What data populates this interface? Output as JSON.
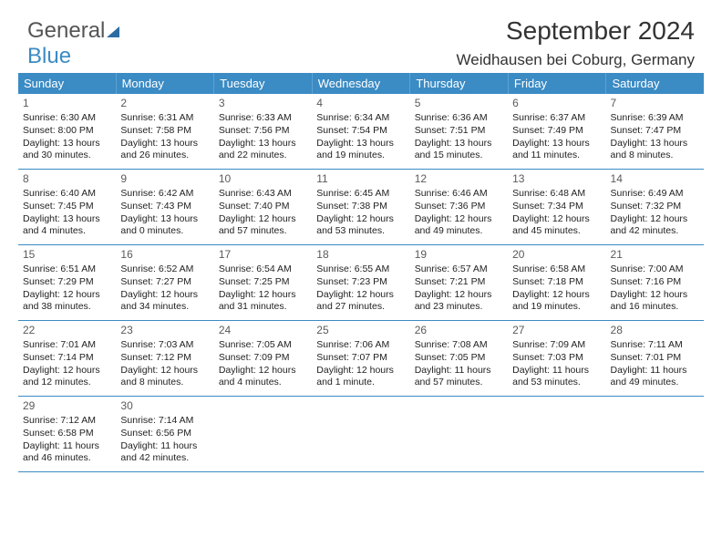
{
  "logo": {
    "text1": "General",
    "text2": "Blue"
  },
  "title": "September 2024",
  "location": "Weidhausen bei Coburg, Germany",
  "colors": {
    "header_bg": "#3b8bc4",
    "header_border": "#5fa3d4",
    "week_border": "#3b8bc4",
    "text": "#222222",
    "title_text": "#333333",
    "logo_gray": "#555555",
    "logo_blue": "#3b8bc4"
  },
  "weekdays": [
    "Sunday",
    "Monday",
    "Tuesday",
    "Wednesday",
    "Thursday",
    "Friday",
    "Saturday"
  ],
  "weeks": [
    [
      {
        "num": "1",
        "sunrise": "Sunrise: 6:30 AM",
        "sunset": "Sunset: 8:00 PM",
        "daylight": "Daylight: 13 hours and 30 minutes."
      },
      {
        "num": "2",
        "sunrise": "Sunrise: 6:31 AM",
        "sunset": "Sunset: 7:58 PM",
        "daylight": "Daylight: 13 hours and 26 minutes."
      },
      {
        "num": "3",
        "sunrise": "Sunrise: 6:33 AM",
        "sunset": "Sunset: 7:56 PM",
        "daylight": "Daylight: 13 hours and 22 minutes."
      },
      {
        "num": "4",
        "sunrise": "Sunrise: 6:34 AM",
        "sunset": "Sunset: 7:54 PM",
        "daylight": "Daylight: 13 hours and 19 minutes."
      },
      {
        "num": "5",
        "sunrise": "Sunrise: 6:36 AM",
        "sunset": "Sunset: 7:51 PM",
        "daylight": "Daylight: 13 hours and 15 minutes."
      },
      {
        "num": "6",
        "sunrise": "Sunrise: 6:37 AM",
        "sunset": "Sunset: 7:49 PM",
        "daylight": "Daylight: 13 hours and 11 minutes."
      },
      {
        "num": "7",
        "sunrise": "Sunrise: 6:39 AM",
        "sunset": "Sunset: 7:47 PM",
        "daylight": "Daylight: 13 hours and 8 minutes."
      }
    ],
    [
      {
        "num": "8",
        "sunrise": "Sunrise: 6:40 AM",
        "sunset": "Sunset: 7:45 PM",
        "daylight": "Daylight: 13 hours and 4 minutes."
      },
      {
        "num": "9",
        "sunrise": "Sunrise: 6:42 AM",
        "sunset": "Sunset: 7:43 PM",
        "daylight": "Daylight: 13 hours and 0 minutes."
      },
      {
        "num": "10",
        "sunrise": "Sunrise: 6:43 AM",
        "sunset": "Sunset: 7:40 PM",
        "daylight": "Daylight: 12 hours and 57 minutes."
      },
      {
        "num": "11",
        "sunrise": "Sunrise: 6:45 AM",
        "sunset": "Sunset: 7:38 PM",
        "daylight": "Daylight: 12 hours and 53 minutes."
      },
      {
        "num": "12",
        "sunrise": "Sunrise: 6:46 AM",
        "sunset": "Sunset: 7:36 PM",
        "daylight": "Daylight: 12 hours and 49 minutes."
      },
      {
        "num": "13",
        "sunrise": "Sunrise: 6:48 AM",
        "sunset": "Sunset: 7:34 PM",
        "daylight": "Daylight: 12 hours and 45 minutes."
      },
      {
        "num": "14",
        "sunrise": "Sunrise: 6:49 AM",
        "sunset": "Sunset: 7:32 PM",
        "daylight": "Daylight: 12 hours and 42 minutes."
      }
    ],
    [
      {
        "num": "15",
        "sunrise": "Sunrise: 6:51 AM",
        "sunset": "Sunset: 7:29 PM",
        "daylight": "Daylight: 12 hours and 38 minutes."
      },
      {
        "num": "16",
        "sunrise": "Sunrise: 6:52 AM",
        "sunset": "Sunset: 7:27 PM",
        "daylight": "Daylight: 12 hours and 34 minutes."
      },
      {
        "num": "17",
        "sunrise": "Sunrise: 6:54 AM",
        "sunset": "Sunset: 7:25 PM",
        "daylight": "Daylight: 12 hours and 31 minutes."
      },
      {
        "num": "18",
        "sunrise": "Sunrise: 6:55 AM",
        "sunset": "Sunset: 7:23 PM",
        "daylight": "Daylight: 12 hours and 27 minutes."
      },
      {
        "num": "19",
        "sunrise": "Sunrise: 6:57 AM",
        "sunset": "Sunset: 7:21 PM",
        "daylight": "Daylight: 12 hours and 23 minutes."
      },
      {
        "num": "20",
        "sunrise": "Sunrise: 6:58 AM",
        "sunset": "Sunset: 7:18 PM",
        "daylight": "Daylight: 12 hours and 19 minutes."
      },
      {
        "num": "21",
        "sunrise": "Sunrise: 7:00 AM",
        "sunset": "Sunset: 7:16 PM",
        "daylight": "Daylight: 12 hours and 16 minutes."
      }
    ],
    [
      {
        "num": "22",
        "sunrise": "Sunrise: 7:01 AM",
        "sunset": "Sunset: 7:14 PM",
        "daylight": "Daylight: 12 hours and 12 minutes."
      },
      {
        "num": "23",
        "sunrise": "Sunrise: 7:03 AM",
        "sunset": "Sunset: 7:12 PM",
        "daylight": "Daylight: 12 hours and 8 minutes."
      },
      {
        "num": "24",
        "sunrise": "Sunrise: 7:05 AM",
        "sunset": "Sunset: 7:09 PM",
        "daylight": "Daylight: 12 hours and 4 minutes."
      },
      {
        "num": "25",
        "sunrise": "Sunrise: 7:06 AM",
        "sunset": "Sunset: 7:07 PM",
        "daylight": "Daylight: 12 hours and 1 minute."
      },
      {
        "num": "26",
        "sunrise": "Sunrise: 7:08 AM",
        "sunset": "Sunset: 7:05 PM",
        "daylight": "Daylight: 11 hours and 57 minutes."
      },
      {
        "num": "27",
        "sunrise": "Sunrise: 7:09 AM",
        "sunset": "Sunset: 7:03 PM",
        "daylight": "Daylight: 11 hours and 53 minutes."
      },
      {
        "num": "28",
        "sunrise": "Sunrise: 7:11 AM",
        "sunset": "Sunset: 7:01 PM",
        "daylight": "Daylight: 11 hours and 49 minutes."
      }
    ],
    [
      {
        "num": "29",
        "sunrise": "Sunrise: 7:12 AM",
        "sunset": "Sunset: 6:58 PM",
        "daylight": "Daylight: 11 hours and 46 minutes."
      },
      {
        "num": "30",
        "sunrise": "Sunrise: 7:14 AM",
        "sunset": "Sunset: 6:56 PM",
        "daylight": "Daylight: 11 hours and 42 minutes."
      },
      null,
      null,
      null,
      null,
      null
    ]
  ]
}
